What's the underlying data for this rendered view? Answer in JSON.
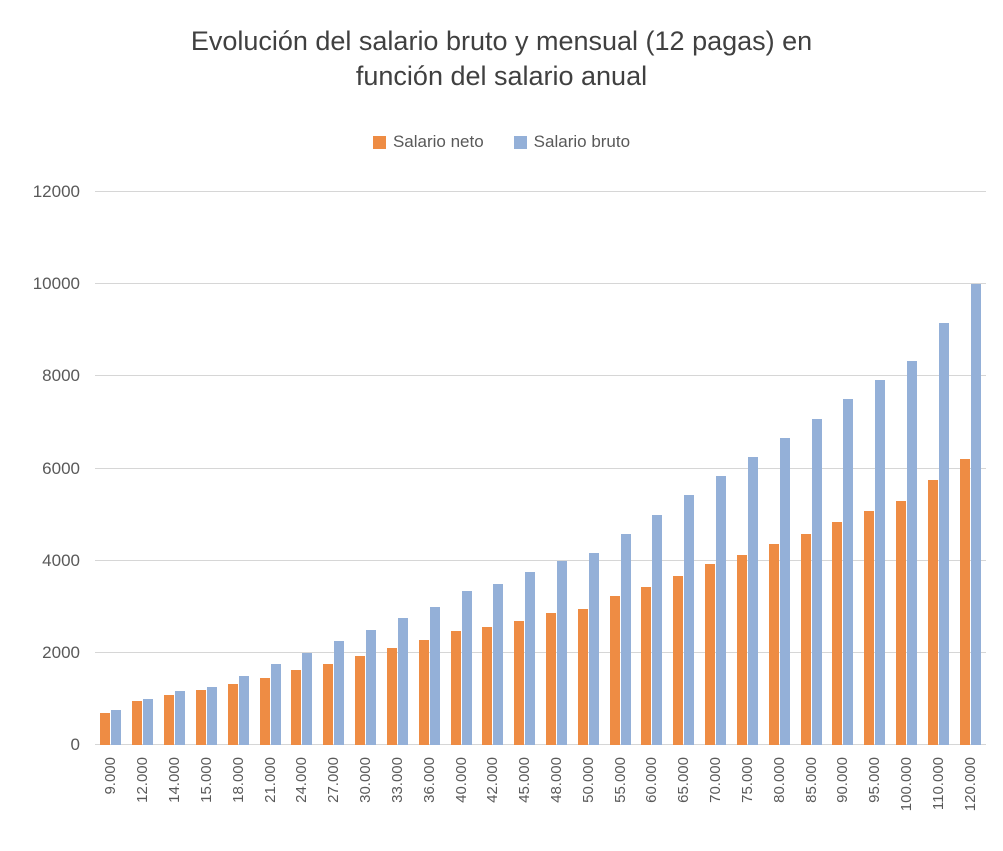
{
  "chart_data": {
    "type": "bar",
    "title": "Evolución del salario bruto y mensual (12 pagas) en función del salario anual",
    "xlabel": "",
    "ylabel": "",
    "categories": [
      "9.000",
      "12.000",
      "14.000",
      "15.000",
      "18.000",
      "21.000",
      "24.000",
      "27.000",
      "30.000",
      "33.000",
      "36.000",
      "40.000",
      "42.000",
      "45.000",
      "48.000",
      "50.000",
      "55.000",
      "60.000",
      "65.000",
      "70.000",
      "75.000",
      "80.000",
      "85.000",
      "90.000",
      "95.000",
      "100.000",
      "110.000",
      "120.000"
    ],
    "series": [
      {
        "name": "Salario neto",
        "color": "#ee8c44",
        "values": [
          700,
          950,
          1090,
          1200,
          1330,
          1450,
          1630,
          1760,
          1930,
          2100,
          2280,
          2480,
          2570,
          2700,
          2870,
          2960,
          3230,
          3420,
          3660,
          3920,
          4130,
          4370,
          4580,
          4830,
          5070,
          5290,
          5760,
          6200
        ]
      },
      {
        "name": "Salario bruto",
        "color": "#94b0d8",
        "values": [
          750,
          1000,
          1167,
          1250,
          1500,
          1750,
          2000,
          2250,
          2500,
          2750,
          3000,
          3333,
          3500,
          3750,
          4000,
          4167,
          4583,
          5000,
          5417,
          5833,
          6250,
          6667,
          7083,
          7500,
          7917,
          8333,
          9167,
          10000
        ]
      }
    ],
    "ylim": [
      0,
      12000
    ],
    "yticks": [
      0,
      2000,
      4000,
      6000,
      8000,
      10000,
      12000
    ],
    "grid": true,
    "legend_position": "top",
    "x_label_rotation_degrees": 90,
    "colors": {
      "title_text": "#404040",
      "axis_text": "#595959",
      "gridline": "#d6d6d6",
      "background": "#ffffff"
    }
  }
}
